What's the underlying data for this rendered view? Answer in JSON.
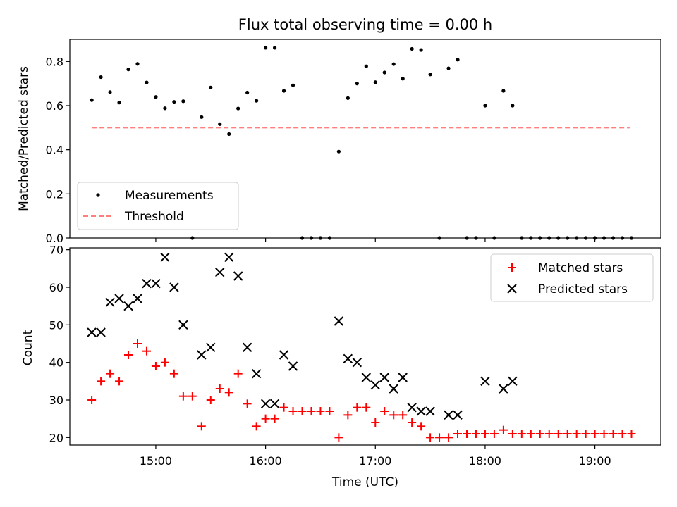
{
  "title": "Flux total observing time = 0.00 h",
  "colors": {
    "measurements": "#000000",
    "threshold": "#ff7f7f",
    "matched": "#ff0000",
    "predicted": "#000000",
    "axis": "#000000"
  },
  "chart_data": [
    {
      "type": "scatter",
      "ylabel": "Matched/Predicted stars",
      "xlabel": "",
      "ylim": [
        0,
        0.9
      ],
      "xlim": [
        "14:13",
        "19:36"
      ],
      "yticks": [
        "0.0",
        "0.2",
        "0.4",
        "0.6",
        "0.8"
      ],
      "legend": {
        "placement": "lower-left",
        "entries": [
          "Measurements",
          "Threshold"
        ]
      },
      "threshold": {
        "name": "Threshold",
        "value": 0.5,
        "x_range": [
          "14:25",
          "19:19"
        ],
        "style": "dashed"
      },
      "series": [
        {
          "name": "Measurements",
          "marker": "dot",
          "points": [
            [
              "14:25",
              0.625
            ],
            [
              "14:30",
              0.729
            ],
            [
              "14:35",
              0.661
            ],
            [
              "14:40",
              0.614
            ],
            [
              "14:45",
              0.764
            ],
            [
              "14:50",
              0.789
            ],
            [
              "14:55",
              0.705
            ],
            [
              "15:00",
              0.639
            ],
            [
              "15:05",
              0.588
            ],
            [
              "15:10",
              0.617
            ],
            [
              "15:15",
              0.62
            ],
            [
              "15:20",
              0.0
            ],
            [
              "15:25",
              0.548
            ],
            [
              "15:30",
              0.682
            ],
            [
              "15:35",
              0.516
            ],
            [
              "15:40",
              0.471
            ],
            [
              "15:45",
              0.587
            ],
            [
              "15:50",
              0.659
            ],
            [
              "15:55",
              0.622
            ],
            [
              "16:00",
              0.862
            ],
            [
              "16:05",
              0.862
            ],
            [
              "16:10",
              0.667
            ],
            [
              "16:15",
              0.692
            ],
            [
              "16:20",
              0.0
            ],
            [
              "16:25",
              0.0
            ],
            [
              "16:30",
              0.0
            ],
            [
              "16:35",
              0.0
            ],
            [
              "16:40",
              0.392
            ],
            [
              "16:45",
              0.634
            ],
            [
              "16:50",
              0.7
            ],
            [
              "16:55",
              0.778
            ],
            [
              "17:00",
              0.706
            ],
            [
              "17:05",
              0.75
            ],
            [
              "17:10",
              0.788
            ],
            [
              "17:15",
              0.722
            ],
            [
              "17:20",
              0.857
            ],
            [
              "17:25",
              0.852
            ],
            [
              "17:30",
              0.741
            ],
            [
              "17:35",
              0.0
            ],
            [
              "17:40",
              0.769
            ],
            [
              "17:45",
              0.808
            ],
            [
              "17:50",
              0.0
            ],
            [
              "17:55",
              0.0
            ],
            [
              "18:00",
              0.6
            ],
            [
              "18:05",
              0.0
            ],
            [
              "18:10",
              0.667
            ],
            [
              "18:15",
              0.6
            ],
            [
              "18:20",
              0.0
            ],
            [
              "18:25",
              0.0
            ],
            [
              "18:30",
              0.0
            ],
            [
              "18:35",
              0.0
            ],
            [
              "18:40",
              0.0
            ],
            [
              "18:45",
              0.0
            ],
            [
              "18:50",
              0.0
            ],
            [
              "18:55",
              0.0
            ],
            [
              "19:00",
              0.0
            ],
            [
              "19:05",
              0.0
            ],
            [
              "19:10",
              0.0
            ],
            [
              "19:15",
              0.0
            ],
            [
              "19:20",
              0.0
            ]
          ]
        }
      ]
    },
    {
      "type": "scatter",
      "ylabel": "Count",
      "xlabel": "Time (UTC)",
      "ylim": [
        18,
        70.5
      ],
      "xlim": [
        "14:13",
        "19:36"
      ],
      "yticks": [
        "20",
        "30",
        "40",
        "50",
        "60",
        "70"
      ],
      "xticks": [
        "15:00",
        "16:00",
        "17:00",
        "18:00",
        "19:00"
      ],
      "legend": {
        "placement": "upper-right",
        "entries": [
          "Matched stars",
          "Predicted stars"
        ]
      },
      "series": [
        {
          "name": "Matched stars",
          "marker": "plus",
          "points": [
            [
              "14:25",
              30
            ],
            [
              "14:30",
              35
            ],
            [
              "14:35",
              37
            ],
            [
              "14:40",
              35
            ],
            [
              "14:45",
              42
            ],
            [
              "14:50",
              45
            ],
            [
              "14:55",
              43
            ],
            [
              "15:00",
              39
            ],
            [
              "15:05",
              40
            ],
            [
              "15:10",
              37
            ],
            [
              "15:15",
              31
            ],
            [
              "15:20",
              31
            ],
            [
              "15:25",
              23
            ],
            [
              "15:30",
              30
            ],
            [
              "15:35",
              33
            ],
            [
              "15:40",
              32
            ],
            [
              "15:45",
              37
            ],
            [
              "15:50",
              29
            ],
            [
              "15:55",
              23
            ],
            [
              "16:00",
              25
            ],
            [
              "16:05",
              25
            ],
            [
              "16:10",
              28
            ],
            [
              "16:15",
              27
            ],
            [
              "16:20",
              27
            ],
            [
              "16:25",
              27
            ],
            [
              "16:30",
              27
            ],
            [
              "16:35",
              27
            ],
            [
              "16:40",
              20
            ],
            [
              "16:45",
              26
            ],
            [
              "16:50",
              28
            ],
            [
              "16:55",
              28
            ],
            [
              "17:00",
              24
            ],
            [
              "17:05",
              27
            ],
            [
              "17:10",
              26
            ],
            [
              "17:15",
              26
            ],
            [
              "17:20",
              24
            ],
            [
              "17:25",
              23
            ],
            [
              "17:30",
              20
            ],
            [
              "17:35",
              20
            ],
            [
              "17:40",
              20
            ],
            [
              "17:45",
              21
            ],
            [
              "17:50",
              21
            ],
            [
              "17:55",
              21
            ],
            [
              "18:00",
              21
            ],
            [
              "18:05",
              21
            ],
            [
              "18:10",
              22
            ],
            [
              "18:15",
              21
            ],
            [
              "18:20",
              21
            ],
            [
              "18:25",
              21
            ],
            [
              "18:30",
              21
            ],
            [
              "18:35",
              21
            ],
            [
              "18:40",
              21
            ],
            [
              "18:45",
              21
            ],
            [
              "18:50",
              21
            ],
            [
              "18:55",
              21
            ],
            [
              "19:00",
              21
            ],
            [
              "19:05",
              21
            ],
            [
              "19:10",
              21
            ],
            [
              "19:15",
              21
            ],
            [
              "19:20",
              21
            ]
          ]
        },
        {
          "name": "Predicted stars",
          "marker": "x",
          "points": [
            [
              "14:25",
              48
            ],
            [
              "14:30",
              48
            ],
            [
              "14:35",
              56
            ],
            [
              "14:40",
              57
            ],
            [
              "14:45",
              55
            ],
            [
              "14:50",
              57
            ],
            [
              "14:55",
              61
            ],
            [
              "15:00",
              61
            ],
            [
              "15:05",
              68
            ],
            [
              "15:10",
              60
            ],
            [
              "15:15",
              50
            ],
            [
              "15:25",
              42
            ],
            [
              "15:30",
              44
            ],
            [
              "15:35",
              64
            ],
            [
              "15:40",
              68
            ],
            [
              "15:45",
              63
            ],
            [
              "15:50",
              44
            ],
            [
              "15:55",
              37
            ],
            [
              "16:00",
              29
            ],
            [
              "16:05",
              29
            ],
            [
              "16:10",
              42
            ],
            [
              "16:15",
              39
            ],
            [
              "16:40",
              51
            ],
            [
              "16:45",
              41
            ],
            [
              "16:50",
              40
            ],
            [
              "16:55",
              36
            ],
            [
              "17:00",
              34
            ],
            [
              "17:05",
              36
            ],
            [
              "17:10",
              33
            ],
            [
              "17:15",
              36
            ],
            [
              "17:20",
              28
            ],
            [
              "17:25",
              27
            ],
            [
              "17:30",
              27
            ],
            [
              "17:40",
              26
            ],
            [
              "17:45",
              26
            ],
            [
              "18:00",
              35
            ],
            [
              "18:10",
              33
            ],
            [
              "18:15",
              35
            ]
          ]
        }
      ]
    }
  ]
}
